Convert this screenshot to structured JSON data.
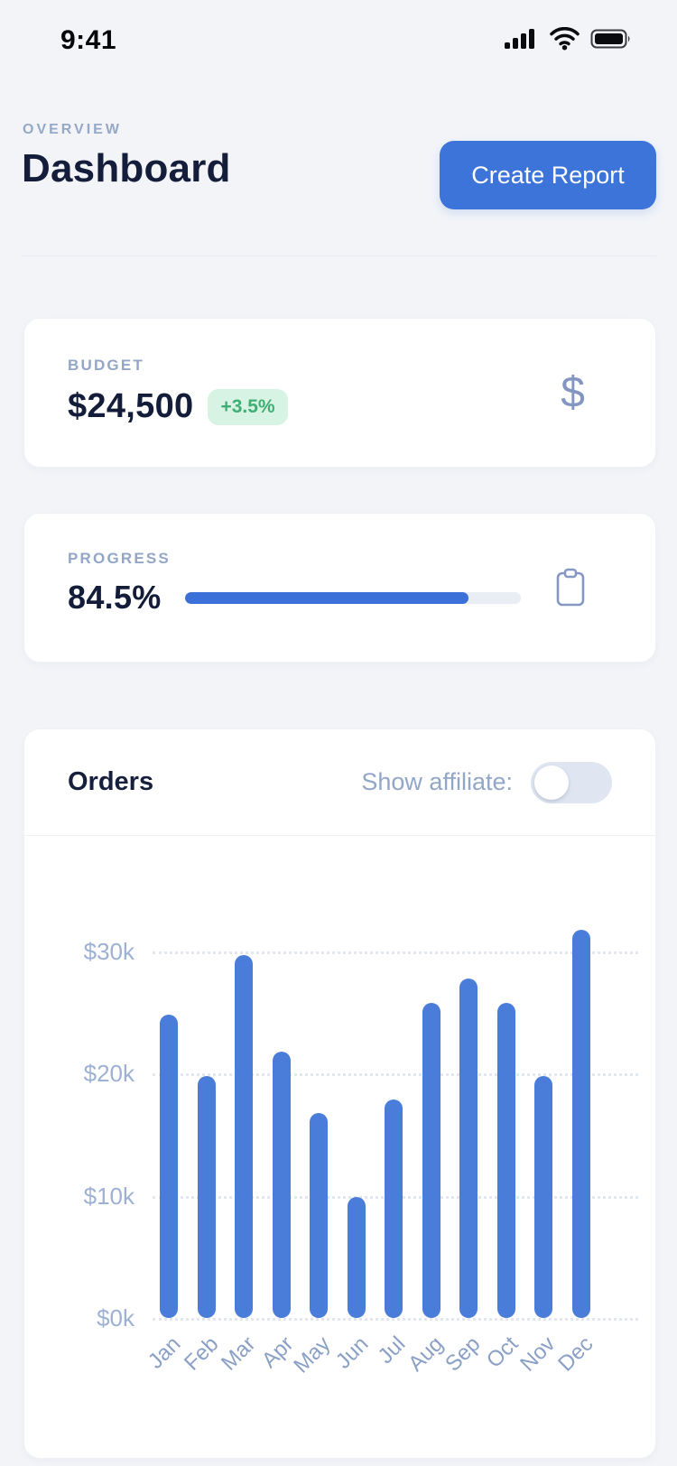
{
  "status_bar": {
    "time": "9:41"
  },
  "header": {
    "eyebrow": "OVERVIEW",
    "title": "Dashboard",
    "create_report_label": "Create Report"
  },
  "budget_card": {
    "label": "BUDGET",
    "value": "$24,500",
    "delta": "+3.5%",
    "icon": "dollar-icon",
    "icon_glyph": "$"
  },
  "progress_card": {
    "label": "PROGRESS",
    "value": "84.5%",
    "percent": 84.5,
    "icon": "clipboard-icon"
  },
  "orders_card": {
    "title": "Orders",
    "toggle_label": "Show affiliate:",
    "toggle_state": "off"
  },
  "colors": {
    "accent_blue": "#3d74d9",
    "bar_blue": "#4a7dda",
    "badge_green_bg": "#d7f3e3",
    "badge_green_text": "#3fae75",
    "muted_label": "#93a6c6",
    "navy_text": "#141e3a",
    "page_bg": "#f2f4f8"
  },
  "chart_data": {
    "type": "bar",
    "title": "Orders",
    "categories": [
      "Jan",
      "Feb",
      "Mar",
      "Apr",
      "May",
      "Jun",
      "Jul",
      "Aug",
      "Sep",
      "Oct",
      "Nov",
      "Dec"
    ],
    "values": [
      24.8,
      19.8,
      29.7,
      21.8,
      16.8,
      9.9,
      17.9,
      25.8,
      27.8,
      25.8,
      19.8,
      31.8
    ],
    "unit": "$k",
    "xlabel": "",
    "ylabel": "",
    "ylim": [
      0,
      34
    ],
    "yticks": [
      0,
      10,
      20,
      30
    ],
    "ytick_labels": [
      "$0k",
      "$10k",
      "$20k",
      "$30k"
    ],
    "grid": "horizontal-dotted",
    "legend": "none",
    "bar_color": "#4a7dda"
  }
}
